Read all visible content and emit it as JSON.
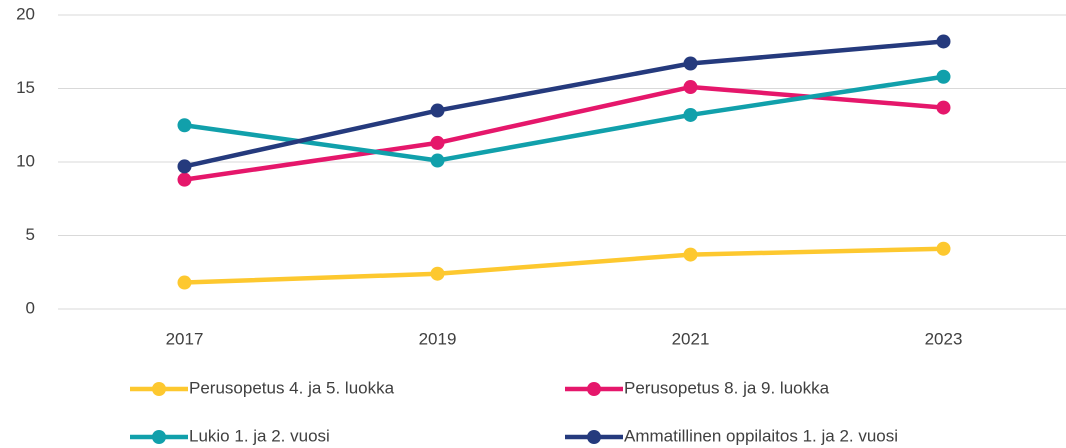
{
  "chart_data": {
    "type": "line",
    "categories": [
      "2017",
      "2019",
      "2021",
      "2023"
    ],
    "series": [
      {
        "name": "Perusopetus 4. ja 5. luokka",
        "color": "#fdc82f",
        "values": [
          1.8,
          2.4,
          3.7,
          4.1
        ]
      },
      {
        "name": "Perusopetus 8. ja 9. luokka",
        "color": "#e5176b",
        "values": [
          8.8,
          11.3,
          15.1,
          13.7
        ]
      },
      {
        "name": "Lukio 1. ja 2. vuosi",
        "color": "#11a0ab",
        "values": [
          12.5,
          10.1,
          13.2,
          15.8
        ]
      },
      {
        "name": "Ammatillinen oppilaitos 1. ja 2. vuosi",
        "color": "#253a7d",
        "values": [
          9.7,
          13.5,
          16.7,
          18.2
        ]
      }
    ],
    "ylim": [
      0,
      20
    ],
    "yticks": [
      0,
      5,
      10,
      15,
      20
    ],
    "grid": true,
    "legend": "bottom"
  }
}
